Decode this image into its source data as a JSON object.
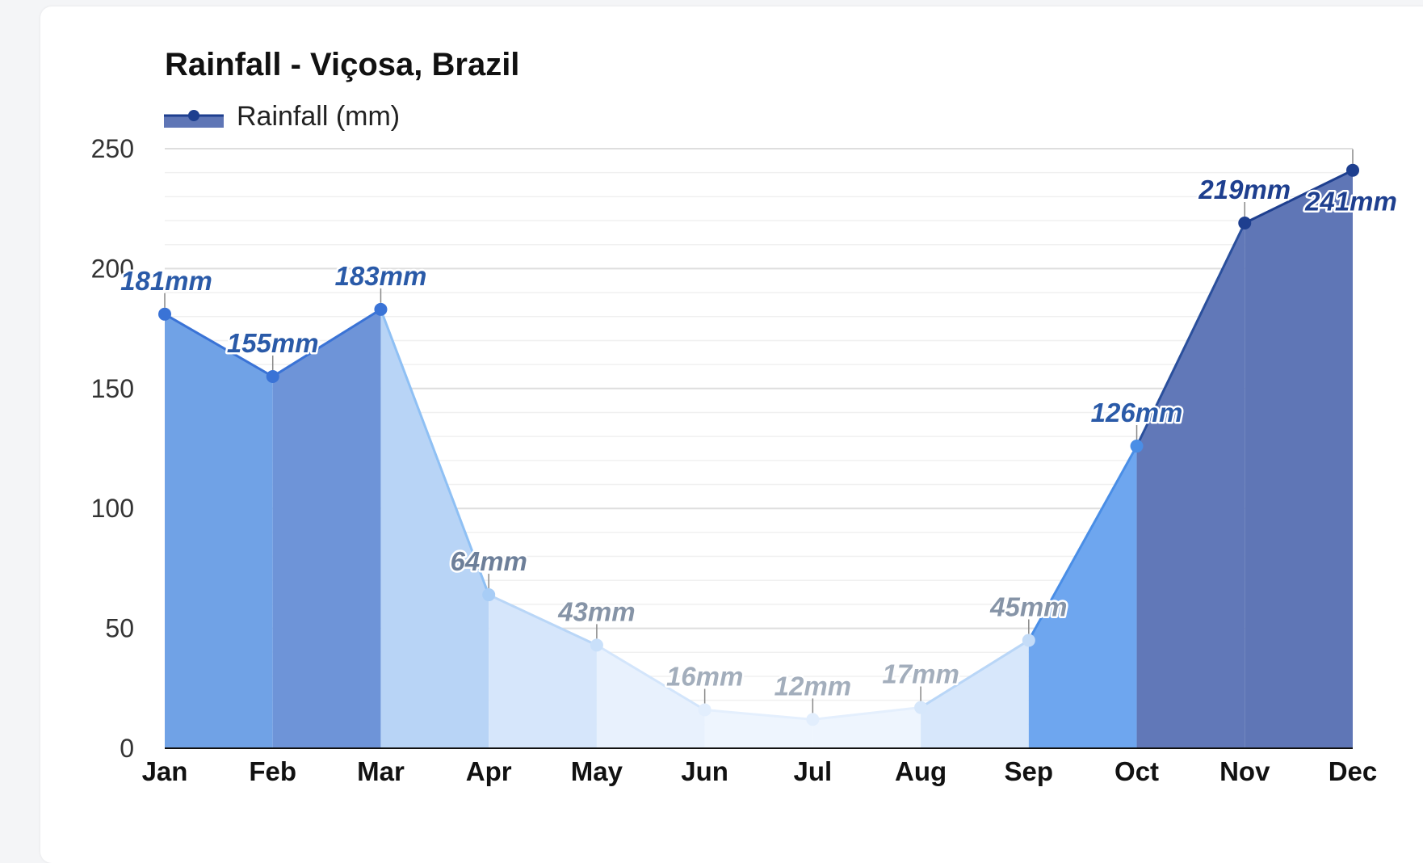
{
  "chart_data": {
    "type": "area",
    "title": "Rainfall - Viçosa, Brazil",
    "categories": [
      "Jan",
      "Feb",
      "Mar",
      "Apr",
      "May",
      "Jun",
      "Jul",
      "Aug",
      "Sep",
      "Oct",
      "Nov",
      "Dec"
    ],
    "series": [
      {
        "name": "Rainfall (mm)",
        "values": [
          181,
          155,
          183,
          64,
          43,
          16,
          12,
          17,
          45,
          126,
          219,
          241
        ],
        "data_labels": [
          "181mm",
          "155mm",
          "183mm",
          "64mm",
          "43mm",
          "16mm",
          "12mm",
          "17mm",
          "45mm",
          "126mm",
          "219mm",
          "241mm"
        ]
      }
    ],
    "ylim": [
      0,
      250
    ],
    "yticks": [
      "0",
      "50",
      "100",
      "150",
      "200",
      "250"
    ],
    "xlabel": "",
    "ylabel": "",
    "grid": true,
    "legend_position": "top-left",
    "colors": {
      "segment_fills": [
        "#70a2e6",
        "#6e94d8",
        "#b8d4f6",
        "#d6e6fb",
        "#e8f1fd",
        "#eef5fe",
        "#eef5fe",
        "#d7e7fb",
        "#6ea6ef",
        "#6178b8",
        "#5f76b6",
        "#5f76b6"
      ],
      "line_colors": [
        "#3a73d6",
        "#3a73d6",
        "#8fc0f4",
        "#b9d6f7",
        "#d3e5fb",
        "#e4effd",
        "#e4effd",
        "#b9d6f7",
        "#4a8ee6",
        "#2a4f9c",
        "#1e3f8f",
        "#1e3f8f"
      ],
      "point_colors": [
        "#3a73d6",
        "#3a73d6",
        "#3a73d6",
        "#a8cdf6",
        "#c9e0fa",
        "#e2eefd",
        "#e2eefd",
        "#d6e7fb",
        "#c4dcf8",
        "#4a8ee6",
        "#1e3f8f",
        "#1e3f8f"
      ],
      "label_colors": [
        "#2a5aa8",
        "#2a5aa8",
        "#2a5aa8",
        "#6d7f99",
        "#8694a7",
        "#a3aebc",
        "#a3aebc",
        "#a3aebc",
        "#8694a7",
        "#2a5aa8",
        "#1e3f8f",
        "#1e3f8f"
      ],
      "legend_line": "#1e3f8f",
      "legend_fill": "#5f76b6"
    }
  }
}
